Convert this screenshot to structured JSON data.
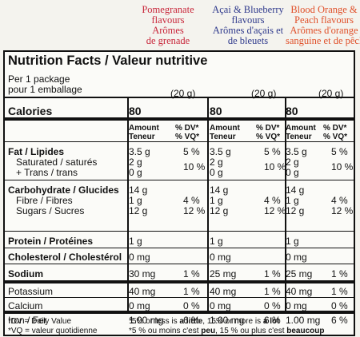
{
  "flavours": [
    {
      "lines": [
        "Pomegranate",
        "flavours",
        "Arômes",
        "de grenade"
      ],
      "color": "#c8263a"
    },
    {
      "lines": [
        "Açai & Blueberry",
        "flavours",
        "Arômes d'açais et",
        "de bleuets"
      ],
      "color": "#2f3a8c"
    },
    {
      "lines": [
        "Blood Orange &",
        "Peach flavours",
        "Arômes d'orange",
        "sanguine et de pêche"
      ],
      "color": "#e0502a"
    }
  ],
  "title": "Nutrition Facts / Valeur nutritive",
  "serving_line1": "Per 1 package",
  "serving_line2": "pour 1 emballage",
  "serving_size": "(20 g)",
  "calories_label": "Calories",
  "calories_value": "80",
  "amount_header": [
    "Amount",
    "Teneur"
  ],
  "dv_header": [
    "% DV*",
    "% VQ*"
  ],
  "nutrients": [
    {
      "name": "Fat / Lipides",
      "bold": true,
      "amount": "3.5 g",
      "dv": "5 %"
    },
    {
      "name": "Saturated / saturés",
      "bold": false,
      "amount": "2 g",
      "dv": "10 %"
    },
    {
      "name": "+ Trans / trans",
      "bold": false,
      "amount": "0 g",
      "dv": ""
    },
    {
      "name": "Carbohydrate / Glucides",
      "bold": true,
      "amount": "14 g",
      "dv": ""
    },
    {
      "name": "Fibre / Fibres",
      "bold": false,
      "amount": "1 g",
      "dv": "4 %"
    },
    {
      "name": "Sugars / Sucres",
      "bold": false,
      "amount": "12 g",
      "dv": "12 %"
    },
    {
      "name": "Protein / Protéines",
      "bold": true,
      "amount": "1 g",
      "dv": ""
    },
    {
      "name": "Cholesterol / Cholestérol",
      "bold": true,
      "amount": "0 mg",
      "dv": ""
    },
    {
      "name": "Sodium",
      "bold": true,
      "amount": "30 mg",
      "dv": "1 %"
    },
    {
      "name": "Potassium",
      "bold": false,
      "amount": "40 mg",
      "dv": "1 %"
    },
    {
      "name": "Calcium",
      "bold": false,
      "amount": "0 mg",
      "dv": "0 %"
    },
    {
      "name": "Iron / Fer",
      "bold": false,
      "amount": "1.00 mg",
      "dv": "6 %"
    }
  ],
  "column_overrides": [
    {},
    {
      "8": {
        "amount": "25 mg"
      }
    },
    {
      "8": {
        "amount": "25 mg"
      }
    }
  ],
  "footnote_left": [
    "*DV = Daily Value",
    "*VQ = valeur quotidienne"
  ],
  "footnote_right_en": [
    "*5% or less is ",
    "a little",
    ", 15% or more is ",
    "a lot"
  ],
  "footnote_right_fr": [
    "*5 % ou moins c'est ",
    "peu",
    ", 15 % ou plus c'est ",
    "beaucoup"
  ]
}
